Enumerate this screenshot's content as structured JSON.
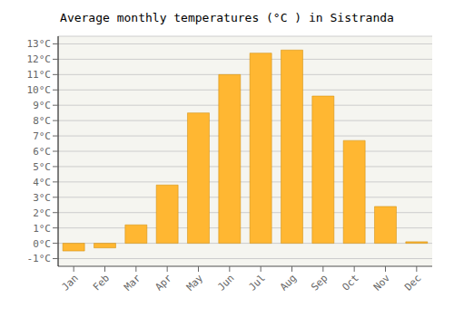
{
  "chart_data": {
    "type": "bar",
    "title": "Average monthly temperatures (°C ) in Sistranda",
    "categories": [
      "Jan",
      "Feb",
      "Mar",
      "Apr",
      "May",
      "Jun",
      "Jul",
      "Aug",
      "Sep",
      "Oct",
      "Nov",
      "Dec"
    ],
    "values": [
      -0.5,
      -0.3,
      1.2,
      3.8,
      8.5,
      11.0,
      12.4,
      12.6,
      9.6,
      6.7,
      2.4,
      0.1
    ],
    "color": "#FFB732",
    "ylim": [
      -1.5,
      13.5
    ],
    "yticks": [
      {
        "value": -1,
        "label": "-1°C"
      },
      {
        "value": 0,
        "label": "0°C"
      },
      {
        "value": 1,
        "label": "1°C"
      },
      {
        "value": 2,
        "label": "2°C"
      },
      {
        "value": 3,
        "label": "3°C"
      },
      {
        "value": 4,
        "label": "4°C"
      },
      {
        "value": 5,
        "label": "5°C"
      },
      {
        "value": 6,
        "label": "6°C"
      },
      {
        "value": 7,
        "label": "7°C"
      },
      {
        "value": 8,
        "label": "8°C"
      },
      {
        "value": 9,
        "label": "9°C"
      },
      {
        "value": 10,
        "label": "10°C"
      },
      {
        "value": 11,
        "label": "11°C"
      },
      {
        "value": 12,
        "label": "12°C"
      },
      {
        "value": 13,
        "label": "13°C"
      }
    ],
    "grid": true
  }
}
